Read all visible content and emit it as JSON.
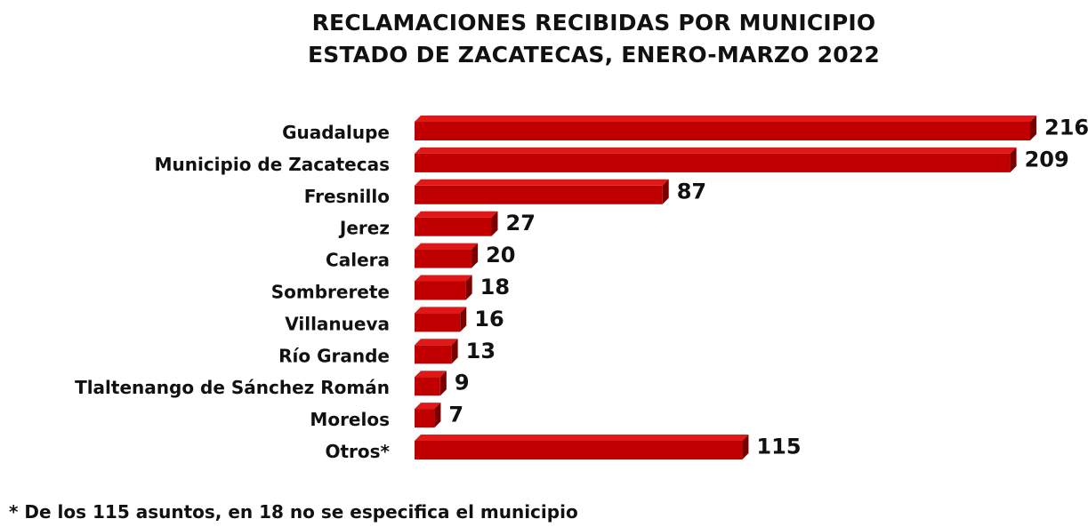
{
  "chart_data": {
    "type": "bar",
    "orientation": "horizontal",
    "title_lines": [
      "RECLAMACIONES RECIBIDAS POR MUNICIPIO",
      "ESTADO DE ZACATECAS, ENERO-MARZO 2022"
    ],
    "categories": [
      "Guadalupe",
      "Municipio de Zacatecas",
      "Fresnillo",
      "Jerez",
      "Calera",
      "Sombrerete",
      "Villanueva",
      "Río Grande",
      "Tlaltenango de Sánchez Román",
      "Morelos",
      "Otros*"
    ],
    "values": [
      216,
      209,
      87,
      27,
      20,
      18,
      16,
      13,
      9,
      7,
      115
    ],
    "value_labels": [
      "216",
      "209",
      "87",
      "27",
      "20",
      "18",
      "16",
      "13",
      "9",
      "7",
      "115"
    ],
    "xlabel": "",
    "ylabel": "",
    "xlim": [
      0,
      216
    ],
    "grid": false,
    "legend": "none",
    "bar_color": "#c00000",
    "bar_top_color": "#e01818",
    "bar_side_color": "#7a0000"
  },
  "footnote": "* De los 115 asuntos, en 18 no se especifica el municipio"
}
